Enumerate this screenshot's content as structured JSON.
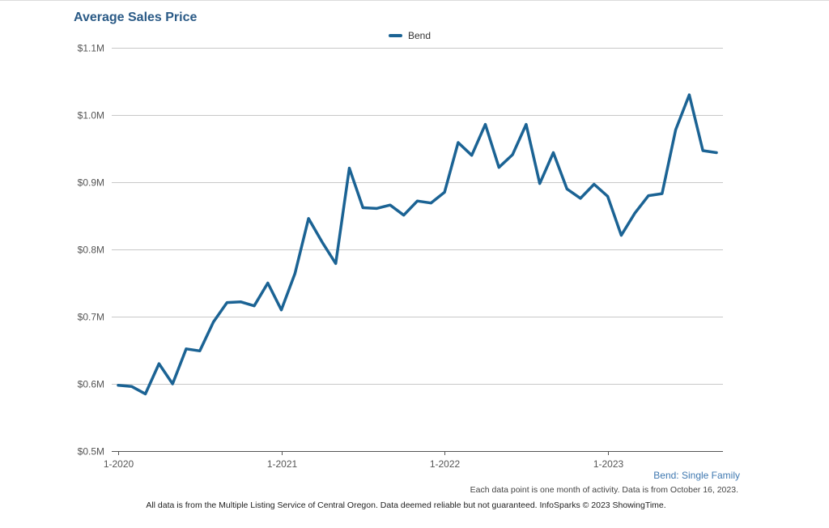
{
  "chart_data": {
    "type": "line",
    "title": "Average Sales Price",
    "subtitle": "Bend: Single Family",
    "xlabel": "",
    "ylabel": "",
    "ylim": [
      500000,
      1100000
    ],
    "yticks": [
      500000,
      600000,
      700000,
      800000,
      900000,
      1000000,
      1100000
    ],
    "ytick_labels": [
      "$0.5M",
      "$0.6M",
      "$0.7M",
      "$0.8M",
      "$0.9M",
      "$1.0M",
      "$1.1M"
    ],
    "xticks": [
      0,
      12,
      24,
      36
    ],
    "xtick_labels": [
      "1-2020",
      "1-2021",
      "1-2022",
      "1-2023"
    ],
    "x_count": 45,
    "legend_position": "top-center",
    "grid": true,
    "series": [
      {
        "name": "Bend",
        "color": "#1b6394",
        "values": [
          598000,
          596000,
          585000,
          630000,
          600000,
          652000,
          649000,
          692000,
          721000,
          722000,
          716000,
          750000,
          710000,
          764000,
          846000,
          811000,
          779000,
          921000,
          862000,
          861000,
          866000,
          851000,
          872000,
          869000,
          885000,
          959000,
          940000,
          986000,
          922000,
          941000,
          986000,
          898000,
          944000,
          890000,
          876000,
          897000,
          879000,
          821000,
          854000,
          880000,
          883000,
          978000,
          1030000,
          947000,
          944000
        ]
      }
    ]
  },
  "footer": {
    "note": "Each data point is one month of activity. Data is from October 16, 2023.",
    "disclaimer": "All data is from the Multiple Listing Service of Central Oregon. Data deemed reliable but not guaranteed. InfoSparks © 2023 ShowingTime."
  }
}
